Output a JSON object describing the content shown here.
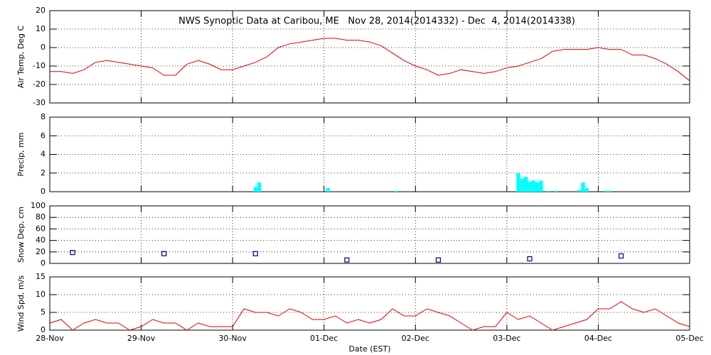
{
  "chart_data": [
    {
      "type": "line",
      "title": "NWS Synoptic Data at Caribou, ME   Nov 28, 2014(2014332) - Dec  4, 2014(2014338)",
      "y_label": "Air Temp, Deg C",
      "x": [
        0,
        3,
        6,
        9,
        12,
        15,
        18,
        21,
        24,
        27,
        30,
        33,
        36,
        39,
        42,
        45,
        48,
        51,
        54,
        57,
        60,
        63,
        66,
        69,
        72,
        75,
        78,
        81,
        84,
        87,
        90,
        93,
        96,
        99,
        102,
        105,
        108,
        111,
        114,
        117,
        120,
        123,
        126,
        129,
        132,
        135,
        138,
        141,
        144,
        147,
        150,
        153,
        156,
        159,
        162,
        165,
        168
      ],
      "values": [
        -13,
        -13,
        -14,
        -12,
        -8,
        -7,
        -8,
        -9,
        -10,
        -11,
        -15,
        -15,
        -9,
        -7,
        -9,
        -12,
        -12,
        -10,
        -8,
        -5,
        0,
        2,
        3,
        4,
        5,
        5,
        4,
        4,
        3,
        1,
        -3,
        -7,
        -10,
        -12,
        -15,
        -14,
        -12,
        -13,
        -14,
        -13,
        -11,
        -10,
        -8,
        -6,
        -2,
        -1,
        -1,
        -1,
        0,
        -1,
        -1,
        -4,
        -4,
        -6,
        -9,
        -13,
        -18
      ],
      "color": "#e00000",
      "xlim": [
        0,
        168
      ],
      "ylim": [
        -30,
        20
      ],
      "yticks": [
        -30,
        -20,
        -10,
        0,
        10,
        20
      ],
      "grid": true
    },
    {
      "type": "bar",
      "y_label": "Precip, mm",
      "x": [
        54,
        55,
        73,
        91,
        123,
        124,
        125,
        126,
        127,
        128,
        129,
        131,
        133,
        139,
        140,
        141,
        146,
        147
      ],
      "values": [
        0.5,
        1.0,
        0.4,
        0.1,
        2.0,
        1.4,
        1.6,
        1.1,
        1.2,
        1.0,
        1.2,
        0.1,
        0.1,
        0.2,
        1.0,
        0.4,
        0.1,
        0.1
      ],
      "color": "#00ffff",
      "xlim": [
        0,
        168
      ],
      "ylim": [
        0,
        8
      ],
      "yticks": [
        0,
        2,
        4,
        6,
        8
      ],
      "grid": true
    },
    {
      "type": "scatter",
      "y_label": "Snow Dep, cm",
      "x": [
        6,
        30,
        54,
        78,
        102,
        126,
        150
      ],
      "values": [
        19,
        17,
        17,
        6,
        6,
        8,
        13
      ],
      "color": "#000080",
      "xlim": [
        0,
        168
      ],
      "ylim": [
        0,
        100
      ],
      "yticks": [
        0,
        20,
        40,
        60,
        80,
        100
      ],
      "grid": true
    },
    {
      "type": "line",
      "y_label": "Wind Spd, m/s",
      "x_label": "Date (EST)",
      "x": [
        0,
        3,
        6,
        9,
        12,
        15,
        18,
        21,
        24,
        27,
        30,
        33,
        36,
        39,
        42,
        45,
        48,
        51,
        54,
        57,
        60,
        63,
        66,
        69,
        72,
        75,
        78,
        81,
        84,
        87,
        90,
        93,
        96,
        99,
        102,
        105,
        108,
        111,
        114,
        117,
        120,
        123,
        126,
        129,
        132,
        135,
        138,
        141,
        144,
        147,
        150,
        153,
        156,
        159,
        162,
        165,
        168
      ],
      "values": [
        2,
        3,
        0,
        2,
        3,
        2,
        2,
        0,
        1,
        3,
        2,
        2,
        0,
        2,
        1,
        1,
        1,
        6,
        5,
        5,
        4,
        6,
        5,
        3,
        3,
        4,
        2,
        3,
        2,
        3,
        6,
        4,
        4,
        6,
        5,
        4,
        2,
        0,
        1,
        1,
        5,
        3,
        4,
        2,
        0,
        1,
        2,
        3,
        6,
        6,
        8,
        6,
        5,
        6,
        4,
        2,
        1
      ],
      "color": "#e00000",
      "xlim": [
        0,
        168
      ],
      "ylim": [
        0,
        15
      ],
      "yticks": [
        0,
        5,
        10,
        15
      ],
      "grid": true,
      "xticks": [
        {
          "value": 0,
          "label": "28-Nov"
        },
        {
          "value": 24,
          "label": "29-Nov"
        },
        {
          "value": 48,
          "label": "30-Nov"
        },
        {
          "value": 72,
          "label": "01-Dec"
        },
        {
          "value": 96,
          "label": "02-Dec"
        },
        {
          "value": 120,
          "label": "03-Dec"
        },
        {
          "value": 144,
          "label": "04-Dec"
        },
        {
          "value": 168,
          "label": "05-Dec"
        }
      ]
    }
  ]
}
